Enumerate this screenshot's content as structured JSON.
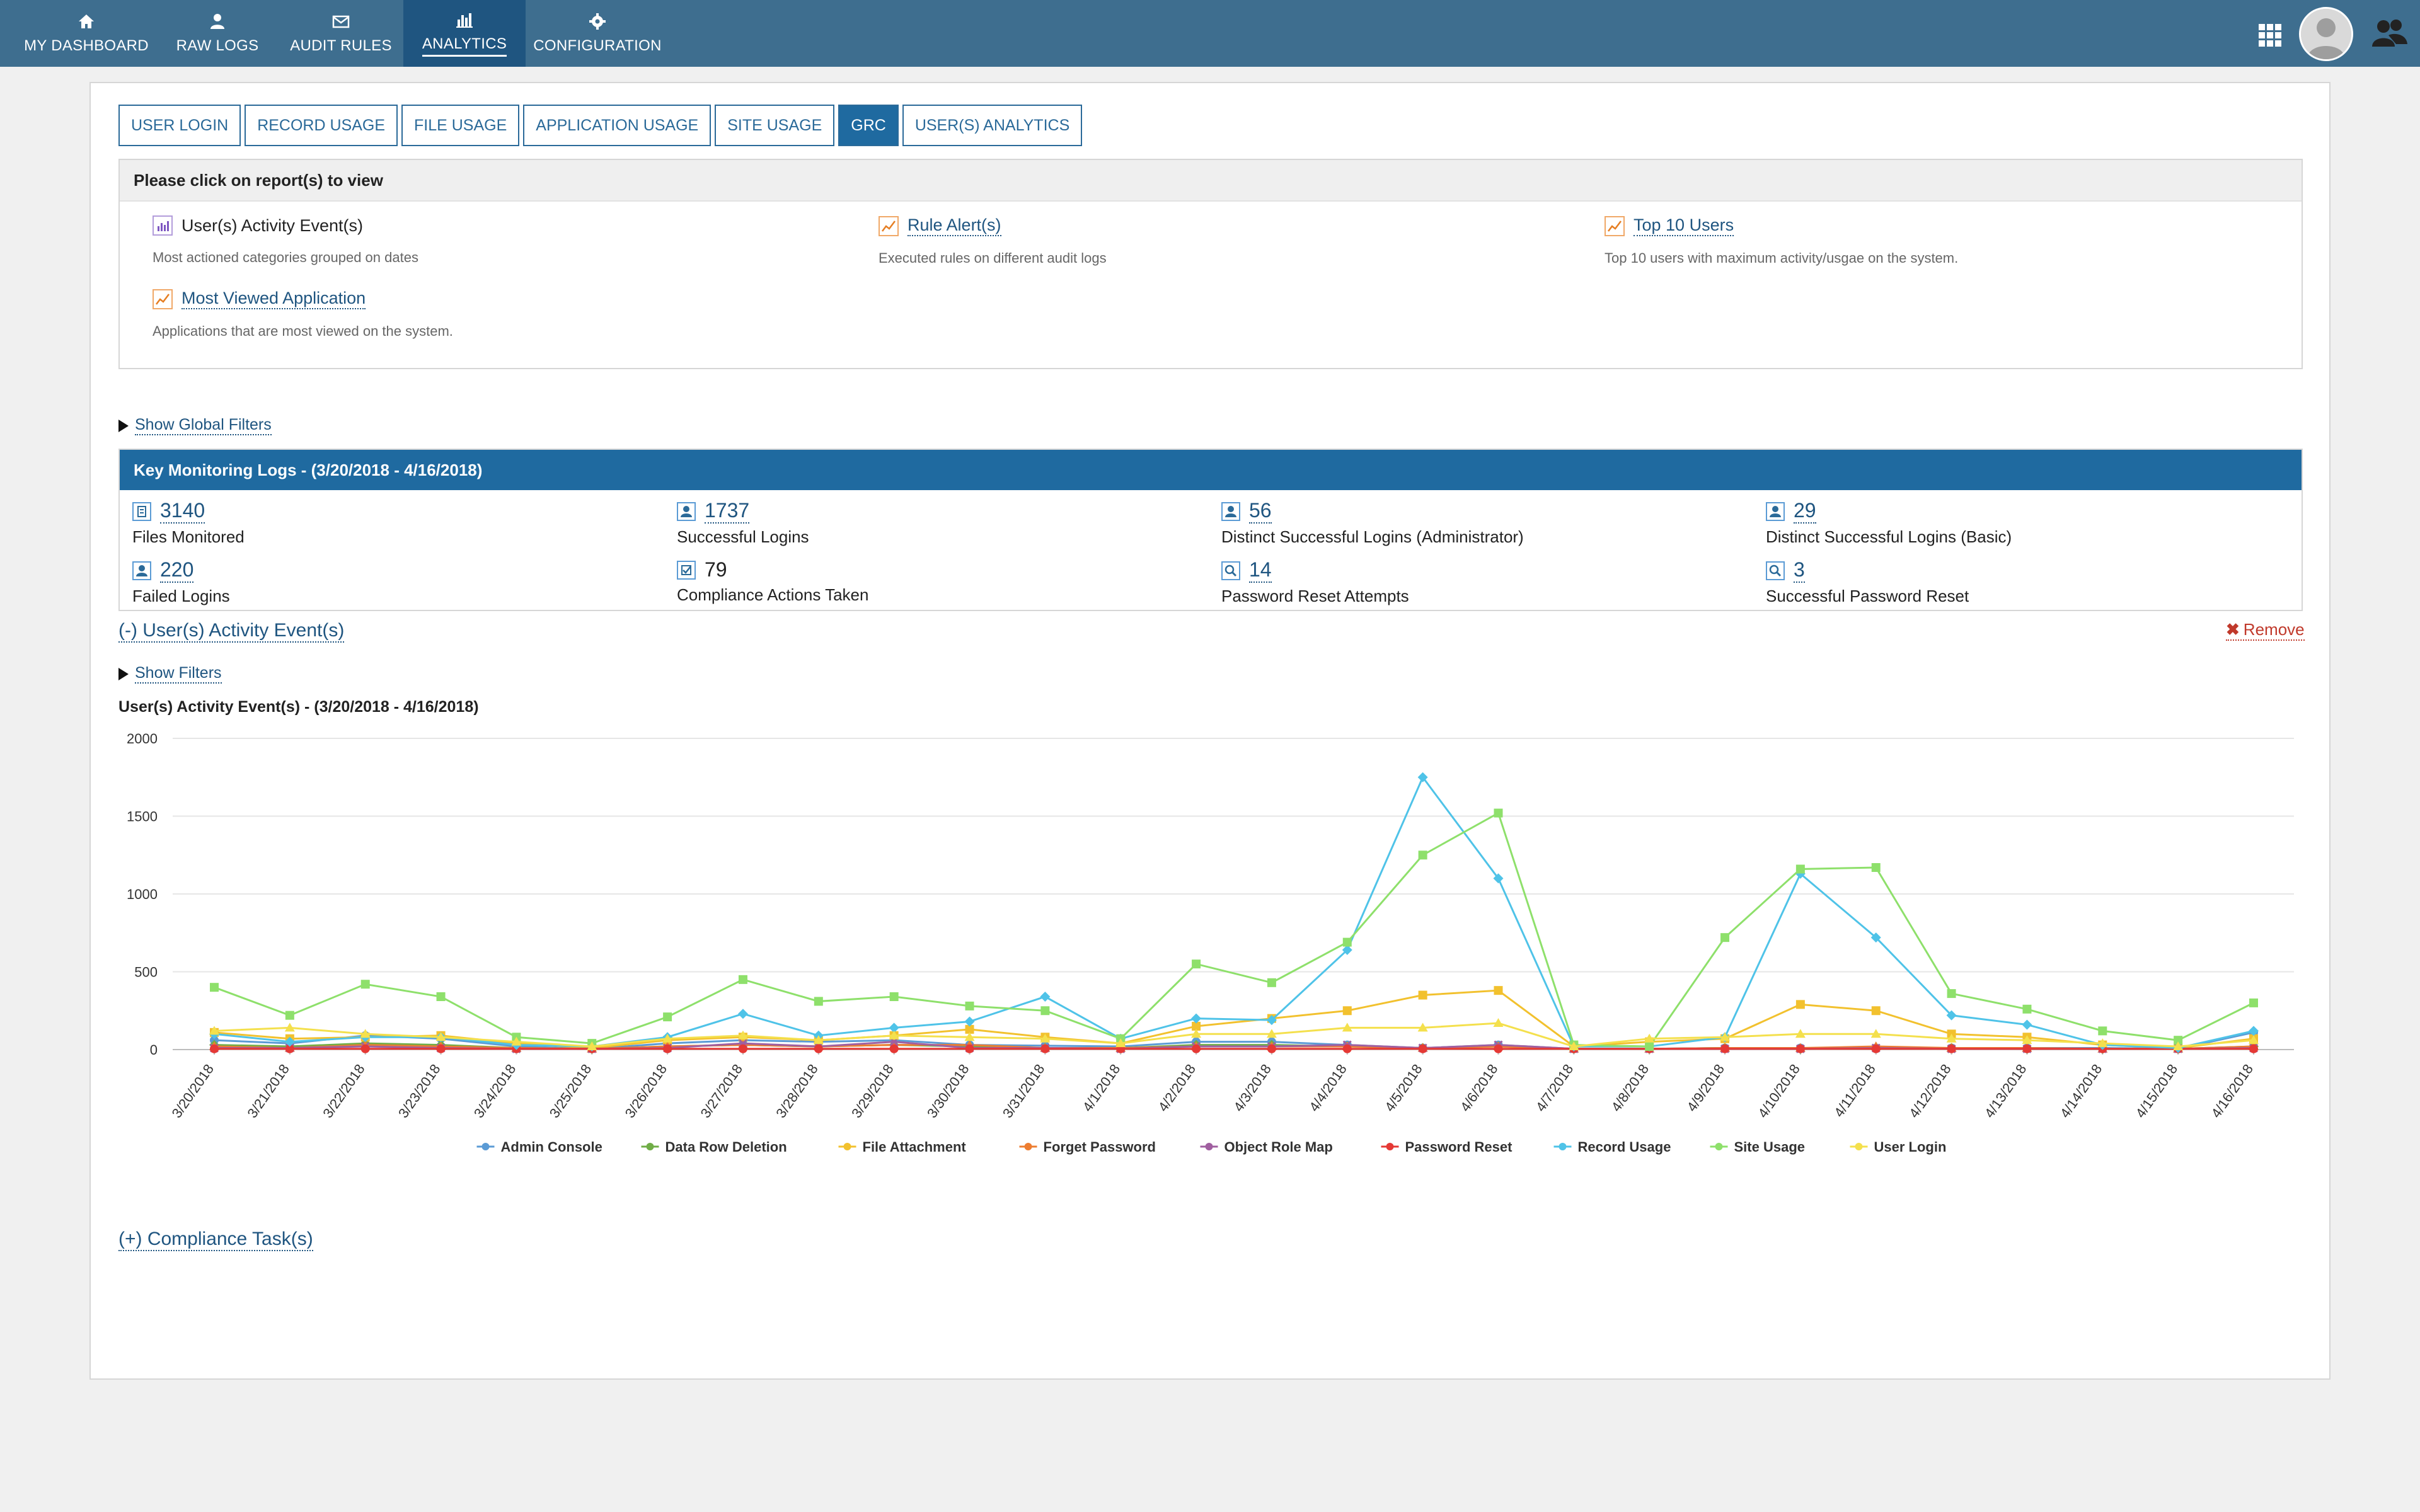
{
  "nav": {
    "items": [
      {
        "label": "MY DASHBOARD",
        "icon": "home-icon"
      },
      {
        "label": "RAW LOGS",
        "icon": "user-icon"
      },
      {
        "label": "AUDIT RULES",
        "icon": "envelope-icon"
      },
      {
        "label": "ANALYTICS",
        "icon": "bar-chart-icon",
        "active": true
      },
      {
        "label": "CONFIGURATION",
        "icon": "gear-icon"
      }
    ],
    "accent_color": "#3e6e8f",
    "active_color": "#1f5580"
  },
  "tabs": [
    {
      "label": "USER LOGIN"
    },
    {
      "label": "RECORD USAGE"
    },
    {
      "label": "FILE USAGE"
    },
    {
      "label": "APPLICATION USAGE"
    },
    {
      "label": "SITE USAGE"
    },
    {
      "label": "GRC",
      "active": true
    },
    {
      "label": "USER(S) ANALYTICS"
    }
  ],
  "reports": {
    "header": "Please click on report(s) to view",
    "items": [
      {
        "title": "User(s) Activity Event(s)",
        "desc": "Most actioned categories grouped on dates",
        "icon": "bar-chart-icon"
      },
      {
        "title": "Rule Alert(s)",
        "desc": "Executed rules on different audit logs",
        "icon": "line-chart-icon"
      },
      {
        "title": "Top 10 Users",
        "desc": "Top 10 users with maximum activity/usgae on the system.",
        "icon": "line-chart-icon"
      },
      {
        "title": "Most Viewed Application",
        "desc": "Applications that are most viewed on the system.",
        "icon": "line-chart-icon"
      }
    ]
  },
  "global_filters_label": "Show Global Filters",
  "kml": {
    "header": "Key Monitoring Logs - (3/20/2018 - 4/16/2018)",
    "metrics": [
      {
        "value": "3140",
        "label": "Files Monitored",
        "icon": "file-icon"
      },
      {
        "value": "1737",
        "label": "Successful Logins",
        "icon": "user-icon"
      },
      {
        "value": "56",
        "label": "Distinct Successful Logins (Administrator)",
        "icon": "user-icon"
      },
      {
        "value": "29",
        "label": "Distinct Successful Logins (Basic)",
        "icon": "user-icon"
      },
      {
        "value": "220",
        "label": "Failed Logins",
        "icon": "user-icon"
      },
      {
        "value": "79",
        "label": "Compliance Actions Taken",
        "icon": "check-icon"
      },
      {
        "value": "14",
        "label": "Password Reset Attempts",
        "icon": "search-icon"
      },
      {
        "value": "3",
        "label": "Successful Password Reset",
        "icon": "search-icon"
      }
    ]
  },
  "activity_section": {
    "title": "(-)  User(s) Activity Event(s)",
    "remove_label": "Remove",
    "show_filters_label": "Show Filters"
  },
  "compliance_label": "(+) Compliance Task(s)",
  "chart_data": {
    "type": "line",
    "title": "User(s) Activity Event(s) - (3/20/2018 - 4/16/2018)",
    "xlabel": "",
    "ylabel": "",
    "ylim": [
      0,
      2000
    ],
    "yticks": [
      0,
      500,
      1000,
      1500,
      2000
    ],
    "grid": true,
    "legend": "bottom",
    "categories": [
      "3/20/2018",
      "3/21/2018",
      "3/22/2018",
      "3/23/2018",
      "3/24/2018",
      "3/25/2018",
      "3/26/2018",
      "3/27/2018",
      "3/28/2018",
      "3/29/2018",
      "3/30/2018",
      "3/31/2018",
      "4/1/2018",
      "4/2/2018",
      "4/3/2018",
      "4/4/2018",
      "4/5/2018",
      "4/6/2018",
      "4/7/2018",
      "4/8/2018",
      "4/9/2018",
      "4/10/2018",
      "4/11/2018",
      "4/12/2018",
      "4/13/2018",
      "4/14/2018",
      "4/15/2018",
      "4/16/2018"
    ],
    "series": [
      {
        "name": "Admin Console",
        "color": "#5b9bd5",
        "marker": "circle",
        "values": [
          60,
          40,
          90,
          70,
          20,
          5,
          40,
          60,
          50,
          60,
          30,
          25,
          20,
          50,
          50,
          30,
          10,
          30,
          5,
          5,
          10,
          10,
          10,
          10,
          10,
          10,
          5,
          110
        ]
      },
      {
        "name": "Data Row Deletion",
        "color": "#70ad47",
        "marker": "diamond",
        "values": [
          30,
          20,
          40,
          30,
          10,
          5,
          20,
          30,
          20,
          30,
          20,
          10,
          10,
          30,
          30,
          20,
          10,
          20,
          5,
          5,
          10,
          5,
          10,
          10,
          5,
          5,
          5,
          20
        ]
      },
      {
        "name": "File Attachment",
        "color": "#f2c12e",
        "marker": "square",
        "values": [
          110,
          70,
          80,
          90,
          40,
          10,
          60,
          80,
          60,
          90,
          130,
          80,
          40,
          150,
          200,
          250,
          350,
          380,
          20,
          50,
          70,
          290,
          250,
          100,
          80,
          30,
          10,
          70
        ]
      },
      {
        "name": "Forget Password",
        "color": "#ed7d31",
        "marker": "triangle",
        "values": [
          20,
          10,
          30,
          20,
          10,
          5,
          20,
          30,
          20,
          30,
          30,
          10,
          10,
          20,
          20,
          20,
          10,
          20,
          5,
          5,
          10,
          10,
          20,
          10,
          10,
          5,
          5,
          20
        ]
      },
      {
        "name": "Object Role Map",
        "color": "#a05fa0",
        "marker": "cross",
        "values": [
          10,
          10,
          20,
          10,
          5,
          5,
          10,
          40,
          20,
          50,
          10,
          10,
          5,
          20,
          20,
          30,
          10,
          30,
          5,
          5,
          5,
          5,
          10,
          5,
          5,
          5,
          5,
          10
        ]
      },
      {
        "name": "Password Reset",
        "color": "#e53935",
        "marker": "circle",
        "values": [
          5,
          5,
          5,
          5,
          5,
          5,
          5,
          5,
          5,
          5,
          5,
          5,
          5,
          5,
          5,
          5,
          5,
          5,
          5,
          5,
          5,
          5,
          5,
          5,
          5,
          5,
          5,
          5
        ]
      },
      {
        "name": "Record Usage",
        "color": "#4fc3e8",
        "marker": "diamond",
        "values": [
          100,
          50,
          80,
          80,
          30,
          20,
          80,
          230,
          90,
          140,
          180,
          340,
          70,
          200,
          190,
          640,
          1750,
          1100,
          20,
          20,
          80,
          1130,
          720,
          220,
          160,
          30,
          10,
          120
        ]
      },
      {
        "name": "Site Usage",
        "color": "#8ee06b",
        "marker": "square",
        "values": [
          400,
          220,
          420,
          340,
          80,
          40,
          210,
          450,
          310,
          340,
          280,
          250,
          70,
          550,
          430,
          690,
          1250,
          1520,
          30,
          20,
          720,
          1160,
          1170,
          360,
          260,
          120,
          60,
          300
        ]
      },
      {
        "name": "User Login",
        "color": "#f4e04d",
        "marker": "triangle",
        "values": [
          120,
          140,
          100,
          80,
          50,
          20,
          70,
          90,
          60,
          90,
          80,
          70,
          40,
          100,
          100,
          140,
          140,
          170,
          20,
          70,
          80,
          100,
          100,
          70,
          60,
          40,
          20,
          60
        ]
      }
    ]
  }
}
